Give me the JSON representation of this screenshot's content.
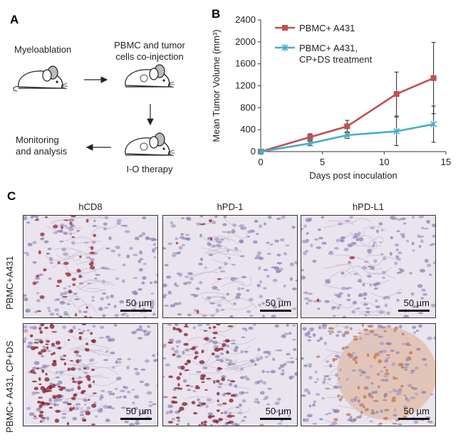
{
  "panel_a": {
    "letter": "A",
    "step1": "Myeloablation",
    "step2_line1": "PBMC and tumor",
    "step2_line2": "cells co-injection",
    "step3": "I-O therapy",
    "step4_line1": "Monitoring",
    "step4_line2": "and analysis",
    "icons": [
      "mouse-icon",
      "arrow-icon"
    ]
  },
  "panel_b": {
    "letter": "B"
  },
  "chart_data": {
    "type": "line",
    "title": "",
    "xlabel": "Days post inoculation",
    "ylabel": "Mean Tumor Volume (mm³)",
    "xlim": [
      0,
      15
    ],
    "ylim": [
      0,
      2400
    ],
    "xticks": [
      "0",
      "5",
      "10",
      "15"
    ],
    "yticks": [
      "0",
      "400",
      "800",
      "1200",
      "1600",
      "2000",
      "2400"
    ],
    "grid": false,
    "legend_position": "top-left",
    "series": [
      {
        "name": "PBMC+ A431",
        "color": "#c0504d",
        "marker": "square",
        "x": [
          0,
          4,
          7,
          11,
          14
        ],
        "y": [
          0,
          265,
          460,
          1050,
          1340
        ],
        "err": [
          0,
          60,
          110,
          400,
          650
        ]
      },
      {
        "name": "PBMC+ A431, CP+DS treatment",
        "legend_line1": "PBMC+ A431,",
        "legend_line2": "CP+DS treatment",
        "color": "#4bacc6",
        "marker": "x",
        "x": [
          0,
          4,
          7,
          11,
          14
        ],
        "y": [
          0,
          150,
          300,
          370,
          500
        ],
        "err": [
          0,
          40,
          60,
          260,
          330
        ]
      }
    ]
  },
  "panel_c": {
    "letter": "C",
    "columns": [
      "hCD8",
      "hPD-1",
      "hPD-L1"
    ],
    "rows": [
      "PBMC+A431",
      "PBMC+ A431, CP+DS"
    ],
    "scale_label": "50 µm"
  }
}
